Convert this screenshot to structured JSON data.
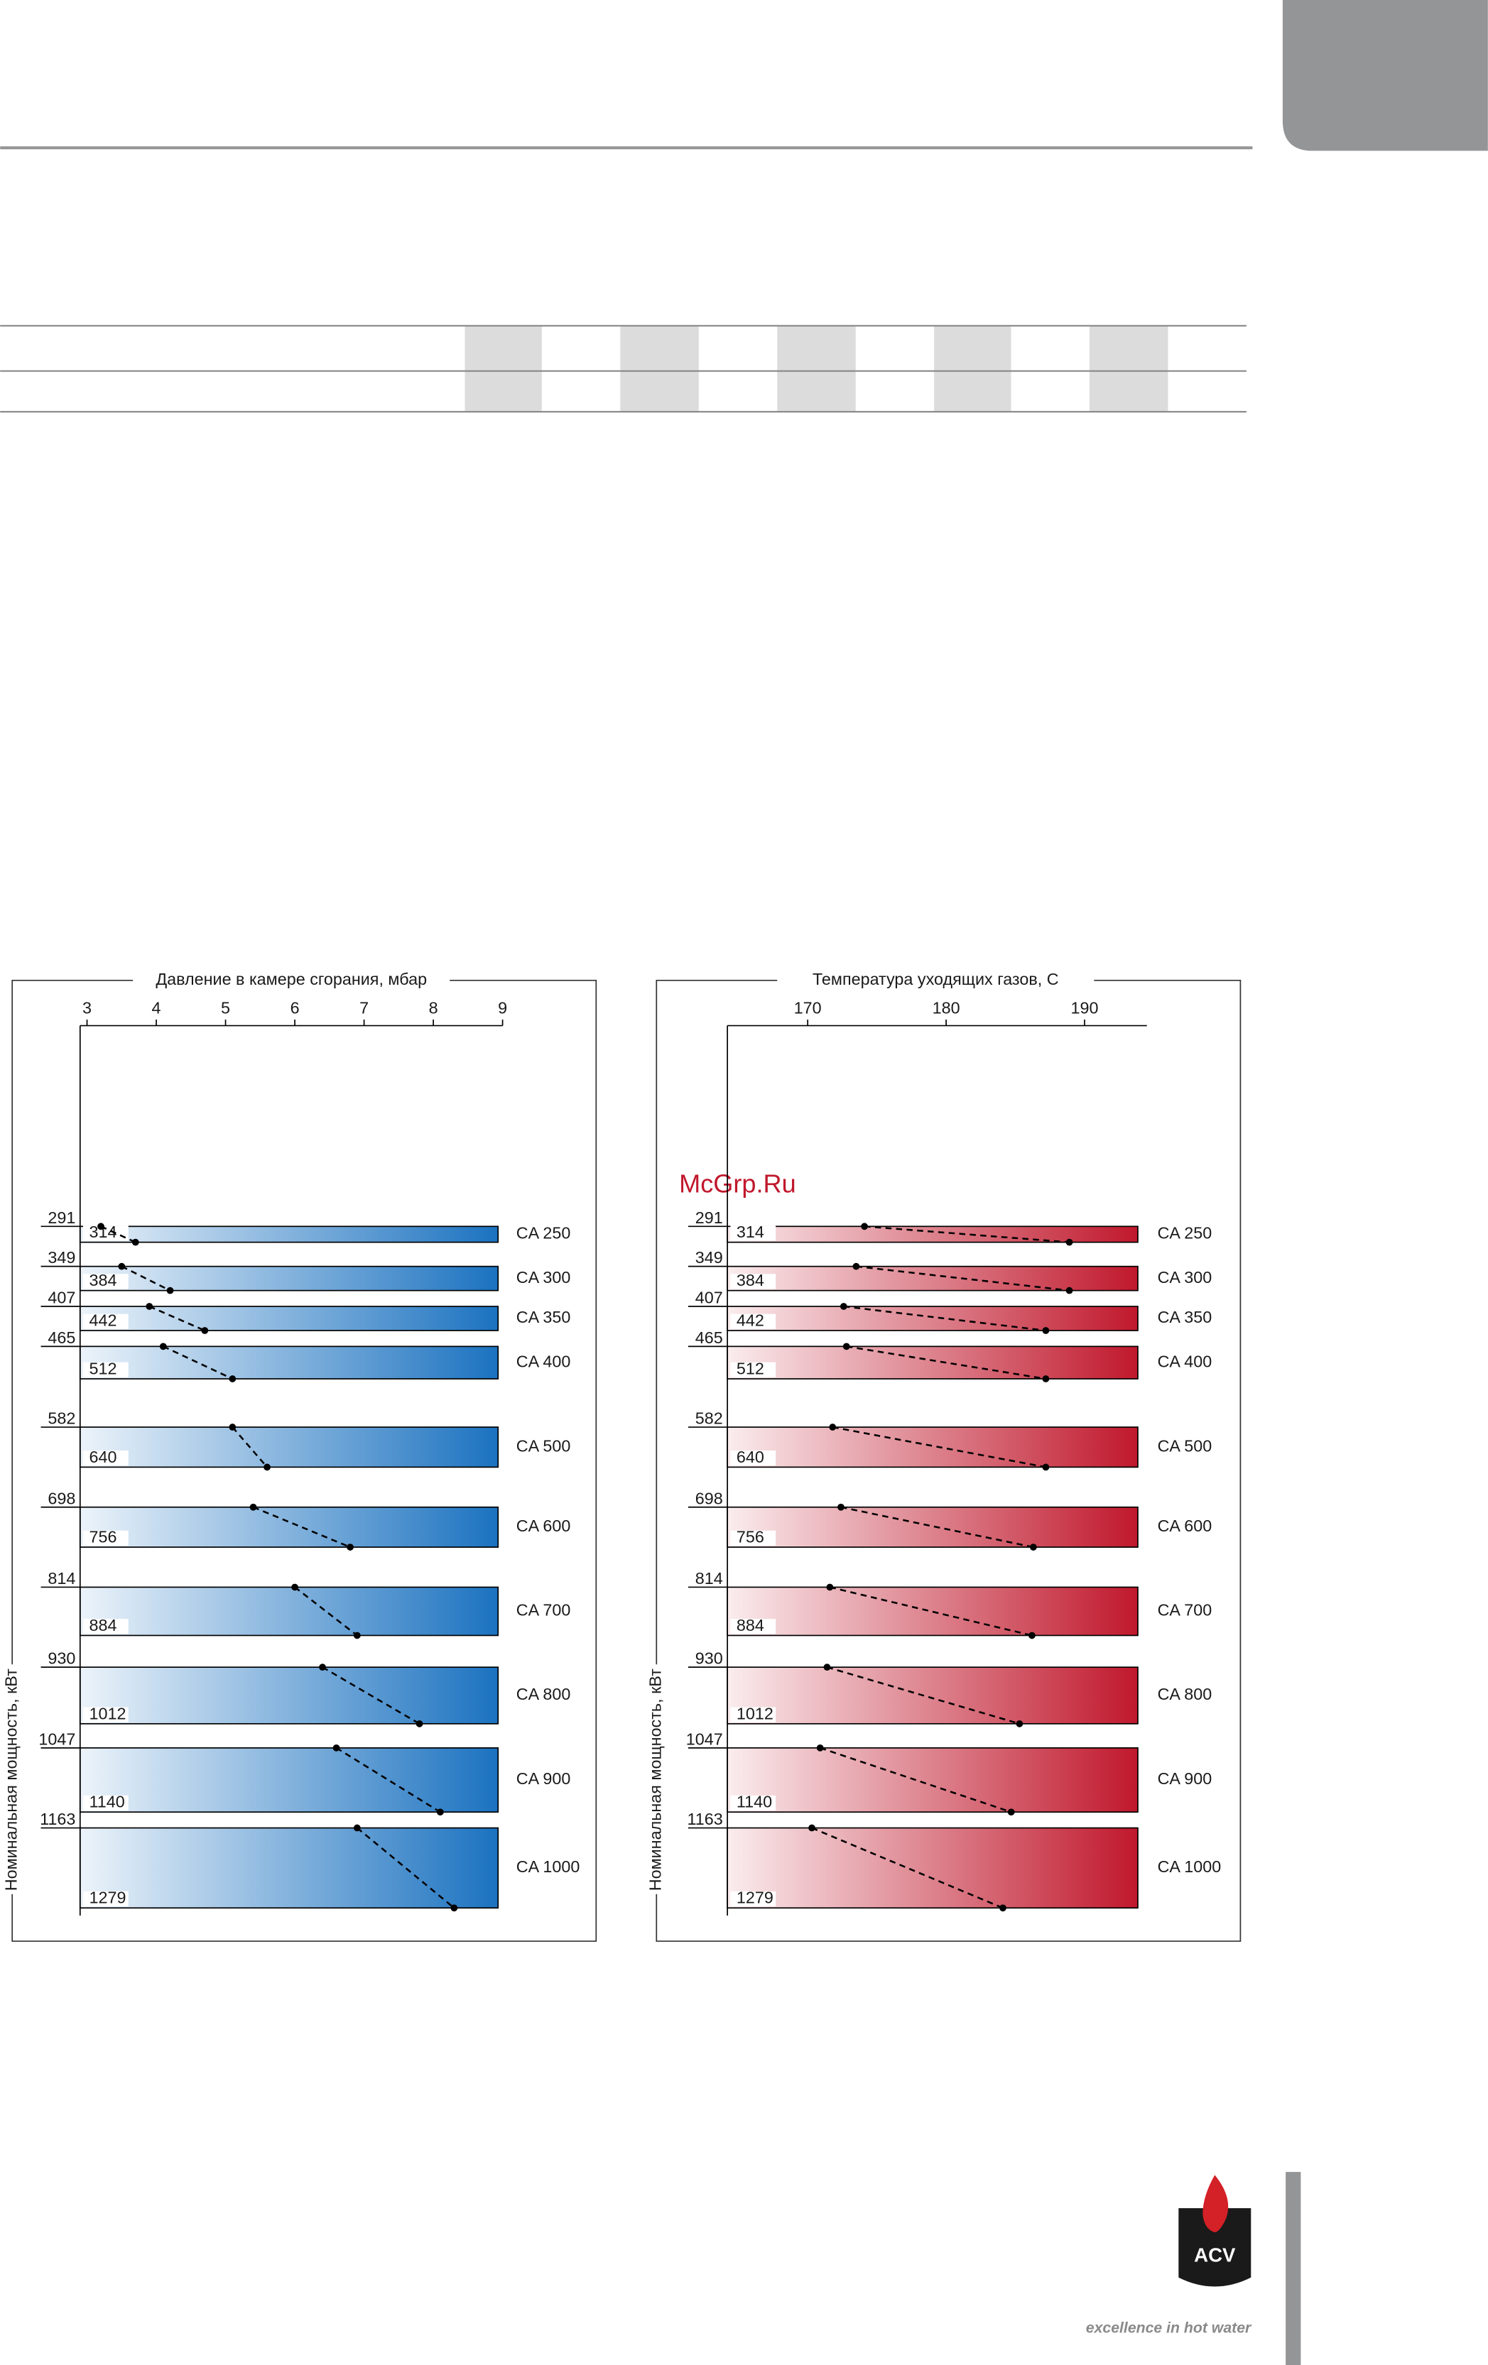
{
  "watermark": "McGrp.Ru",
  "logo": {
    "brand": "ACV",
    "slogan": "excellence in hot water"
  },
  "chart_data": [
    {
      "type": "band",
      "x_label": "Давление в камере сгорания, мбар",
      "y_label": "Номинальная мощность, кВт",
      "xlim": [
        2.9,
        9
      ],
      "xticks": [
        3,
        4,
        5,
        6,
        7,
        8,
        9
      ],
      "ylim": [
        0,
        1290
      ],
      "color": "#1b72c0",
      "series": [
        {
          "name": "CA 250",
          "y": [
            291,
            314
          ],
          "values": [
            3.2,
            3.7
          ]
        },
        {
          "name": "CA 300",
          "y": [
            349,
            384
          ],
          "values": [
            3.5,
            4.2
          ]
        },
        {
          "name": "CA 350",
          "y": [
            407,
            442
          ],
          "values": [
            3.9,
            4.7
          ]
        },
        {
          "name": "CA 400",
          "y": [
            465,
            512
          ],
          "values": [
            4.1,
            5.1
          ]
        },
        {
          "name": "CA 500",
          "y": [
            582,
            640
          ],
          "values": [
            5.1,
            5.6
          ]
        },
        {
          "name": "CA 600",
          "y": [
            698,
            756
          ],
          "values": [
            5.4,
            6.8
          ]
        },
        {
          "name": "CA 700",
          "y": [
            814,
            884
          ],
          "values": [
            6.0,
            6.9
          ]
        },
        {
          "name": "CA 800",
          "y": [
            930,
            1012
          ],
          "values": [
            6.4,
            7.8
          ]
        },
        {
          "name": "CA 900",
          "y": [
            1047,
            1140
          ],
          "values": [
            6.6,
            8.1
          ]
        },
        {
          "name": "CA 1000",
          "y": [
            1163,
            1279
          ],
          "values": [
            6.9,
            8.3
          ]
        }
      ]
    },
    {
      "type": "band",
      "x_label": "Температура уходящих газов, С",
      "y_label": "Номинальная мощность, кВт",
      "xlim": [
        164.2,
        194.5
      ],
      "xticks": [
        170,
        180,
        190
      ],
      "ylim": [
        0,
        1290
      ],
      "color": "#c0182c",
      "series": [
        {
          "name": "CA 250",
          "y": [
            291,
            314
          ],
          "values": [
            174.1,
            188.9
          ]
        },
        {
          "name": "CA 300",
          "y": [
            349,
            384
          ],
          "values": [
            173.5,
            188.9
          ]
        },
        {
          "name": "CA 350",
          "y": [
            407,
            442
          ],
          "values": [
            172.6,
            187.2
          ]
        },
        {
          "name": "CA 400",
          "y": [
            465,
            512
          ],
          "values": [
            172.8,
            187.2
          ]
        },
        {
          "name": "CA 500",
          "y": [
            582,
            640
          ],
          "values": [
            171.8,
            187.2
          ]
        },
        {
          "name": "CA 600",
          "y": [
            698,
            756
          ],
          "values": [
            172.4,
            186.3
          ]
        },
        {
          "name": "CA 700",
          "y": [
            814,
            884
          ],
          "values": [
            171.6,
            186.2
          ]
        },
        {
          "name": "CA 800",
          "y": [
            930,
            1012
          ],
          "values": [
            171.4,
            185.3
          ]
        },
        {
          "name": "CA 900",
          "y": [
            1047,
            1140
          ],
          "values": [
            170.9,
            184.7
          ]
        },
        {
          "name": "CA 1000",
          "y": [
            1163,
            1279
          ],
          "values": [
            170.3,
            184.1
          ]
        }
      ]
    }
  ]
}
